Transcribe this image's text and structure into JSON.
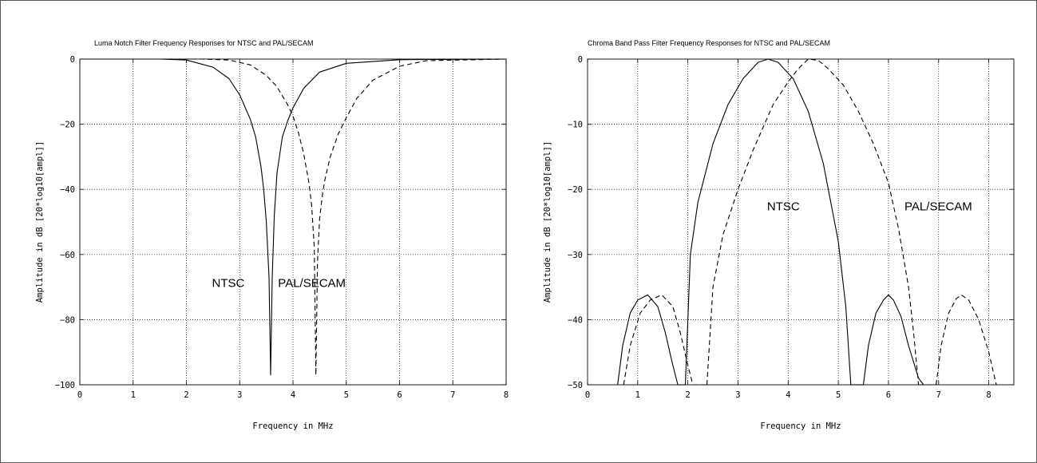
{
  "chart_data": [
    {
      "type": "line",
      "title": "Luma Notch Filter Frequency Responses for NTSC and PAL/SECAM",
      "xlabel": "Frequency in MHz",
      "ylabel": "Amplitude in dB [20*log10[ampl]]",
      "xlim": [
        0,
        8
      ],
      "ylim": [
        -100,
        0
      ],
      "xticks": [
        0,
        1,
        2,
        3,
        4,
        5,
        6,
        7,
        8
      ],
      "yticks": [
        0,
        -20,
        -40,
        -60,
        -80,
        -100
      ],
      "ytick_labels": [
        "0",
        "−20",
        "−40",
        "−60",
        "−80",
        "−100"
      ],
      "grid": true,
      "annotations": [
        {
          "text": "NTSC",
          "x": 2.48,
          "y": -70
        },
        {
          "text": "PAL/SECAM",
          "x": 3.72,
          "y": -70
        }
      ],
      "series": [
        {
          "style": "solid",
          "x": [
            0,
            1.5,
            2.0,
            2.5,
            2.8,
            3.0,
            3.2,
            3.3,
            3.4,
            3.45,
            3.5,
            3.55,
            3.58,
            3.61,
            3.65,
            3.7,
            3.8,
            3.9,
            4.0,
            4.2,
            4.5,
            5.0,
            6.0,
            8.0
          ],
          "y": [
            0,
            0,
            -0.3,
            -2.5,
            -6,
            -11,
            -18.5,
            -24,
            -33,
            -40,
            -50,
            -67,
            -97,
            -67,
            -48,
            -35,
            -24,
            -19,
            -15,
            -9,
            -4,
            -1.3,
            -0.2,
            0
          ]
        },
        {
          "style": "dashed",
          "x": [
            0,
            2.3,
            2.8,
            3.2,
            3.5,
            3.7,
            3.9,
            4.0,
            4.1,
            4.2,
            4.3,
            4.35,
            4.4,
            4.43,
            4.46,
            4.5,
            4.55,
            4.6,
            4.7,
            4.85,
            5.0,
            5.2,
            5.5,
            6.0,
            6.5,
            8.0
          ],
          "y": [
            0,
            0,
            -0.3,
            -1.8,
            -5,
            -8.5,
            -14,
            -17.5,
            -22.5,
            -29,
            -38,
            -45,
            -58,
            -97,
            -62,
            -49,
            -42,
            -37,
            -30,
            -23,
            -18,
            -12,
            -6.5,
            -2.2,
            -0.5,
            0
          ]
        }
      ]
    },
    {
      "type": "line",
      "title": "Chroma Band Pass Filter Frequency Responses for NTSC and PAL/SECAM",
      "xlabel": "Frequency in MHz",
      "ylabel": "Amplitude in dB [20*log10[ampl]]",
      "xlim": [
        0,
        8.5
      ],
      "ylim": [
        -50,
        0
      ],
      "xticks": [
        0,
        1,
        2,
        3,
        4,
        5,
        6,
        7,
        8
      ],
      "yticks": [
        0,
        -10,
        -20,
        -30,
        -40,
        -50
      ],
      "ytick_labels": [
        "0",
        "−10",
        "−20",
        "−30",
        "−40",
        "−50"
      ],
      "grid": true,
      "annotations": [
        {
          "text": "NTSC",
          "x": 3.58,
          "y": -23.2
        },
        {
          "text": "PAL/SECAM",
          "x": 6.32,
          "y": -23.2
        }
      ],
      "series": [
        {
          "style": "solid",
          "segments": [
            {
              "x": [
                0.6,
                0.7,
                0.85,
                1.0,
                1.2,
                1.4,
                1.55,
                1.7,
                1.8
              ],
              "y": [
                -50,
                -44,
                -39,
                -37,
                -36.2,
                -38,
                -42,
                -47,
                -50
              ]
            },
            {
              "x": [
                1.8,
                1.95
              ],
              "y": [
                -50,
                -50
              ]
            },
            {
              "x": [
                1.95,
                2.05,
                2.2,
                2.5,
                2.8,
                3.1,
                3.4,
                3.6,
                3.8,
                4.1,
                4.4,
                4.7,
                5.0,
                5.15,
                5.25
              ],
              "y": [
                -50,
                -30,
                -22,
                -13,
                -7,
                -3,
                -0.5,
                0,
                -0.5,
                -3,
                -8,
                -16,
                -28,
                -38,
                -50
              ]
            },
            {
              "x": [
                5.25,
                5.5
              ],
              "y": [
                -50,
                -50
              ]
            },
            {
              "x": [
                5.5,
                5.6,
                5.75,
                5.9,
                6.0,
                6.1,
                6.25,
                6.4,
                6.6,
                6.7
              ],
              "y": [
                -50,
                -44,
                -39,
                -37,
                -36.2,
                -37,
                -39.5,
                -44,
                -49,
                -50
              ]
            }
          ]
        },
        {
          "style": "dashed",
          "segments": [
            {
              "x": [
                0.72,
                0.85,
                1.05,
                1.25,
                1.48,
                1.7,
                1.85,
                2.0,
                2.1
              ],
              "y": [
                -50,
                -44,
                -39,
                -37,
                -36.2,
                -38,
                -42,
                -47,
                -50
              ]
            },
            {
              "x": [
                2.1,
                2.38
              ],
              "y": [
                -50,
                -50
              ]
            },
            {
              "x": [
                2.38,
                2.5,
                2.7,
                3.0,
                3.3,
                3.7,
                4.0,
                4.2,
                4.4,
                4.6,
                4.8,
                5.1,
                5.4,
                5.7,
                6.0,
                6.2,
                6.4,
                6.5,
                6.6
              ],
              "y": [
                -50,
                -35,
                -27,
                -20,
                -14,
                -7,
                -3.5,
                -1.5,
                0,
                -0.2,
                -1.5,
                -4,
                -8,
                -13,
                -19,
                -26,
                -35,
                -42,
                -50
              ]
            },
            {
              "x": [
                6.6,
                6.95
              ],
              "y": [
                -50,
                -50
              ]
            },
            {
              "x": [
                6.95,
                7.05,
                7.2,
                7.35,
                7.45,
                7.6,
                7.8,
                8.0,
                8.15
              ],
              "y": [
                -50,
                -44,
                -39,
                -36.8,
                -36.2,
                -37,
                -40,
                -45,
                -50
              ]
            }
          ]
        }
      ]
    }
  ]
}
